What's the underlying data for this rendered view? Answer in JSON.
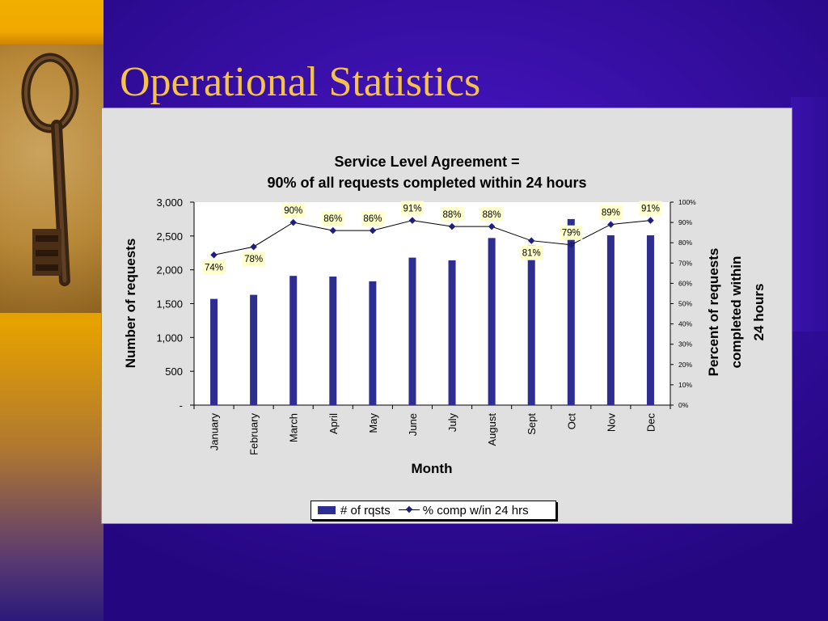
{
  "slide": {
    "title": "Operational Statistics",
    "colors": {
      "title": "#f7c24a",
      "background": "#3a10aa",
      "accent_strip": "#f0a800",
      "bar": "#2e2e92",
      "line": "#000000",
      "marker": "#1f1f7a",
      "label_box": "#ffffcc"
    },
    "image": {
      "icon": "skeleton-key-icon"
    }
  },
  "chart_data": {
    "type": "bar+line",
    "title": [
      "Service Level Agreement =",
      "90% of all requests completed within 24 hours"
    ],
    "xlabel": "Month",
    "ylabel": "Number of requests",
    "y2label": [
      "Percent of requests",
      "completed within",
      "24 hours"
    ],
    "categories": [
      "January",
      "February",
      "March",
      "April",
      "May",
      "June",
      "July",
      "August",
      "Sept",
      "Oct",
      "Nov",
      "Dec"
    ],
    "ylim": [
      0,
      3000
    ],
    "yticks": [
      0,
      500,
      1000,
      1500,
      2000,
      2500,
      3000
    ],
    "ytick_labels": [
      "-",
      "500",
      "1,000",
      "1,500",
      "2,000",
      "2,500",
      "3,000"
    ],
    "y2lim": [
      0,
      100
    ],
    "y2ticks": [
      0,
      10,
      20,
      30,
      40,
      50,
      60,
      70,
      80,
      90,
      100
    ],
    "y2tick_labels": [
      "0%",
      "10%",
      "20%",
      "30%",
      "40%",
      "50%",
      "60%",
      "70%",
      "80%",
      "90%",
      "100%"
    ],
    "grid": false,
    "series": [
      {
        "name": "# of rqsts",
        "type": "bar",
        "axis": "left",
        "values": [
          1570,
          1630,
          1910,
          1900,
          1830,
          2180,
          2140,
          2470,
          2360,
          2750,
          2510,
          2510
        ]
      },
      {
        "name": "% comp w/in 24 hrs",
        "type": "line",
        "axis": "right",
        "values": [
          74,
          78,
          90,
          86,
          86,
          91,
          88,
          88,
          81,
          79,
          89,
          91
        ],
        "labels": [
          "74%",
          "78%",
          "90%",
          "86%",
          "86%",
          "91%",
          "88%",
          "88%",
          "81%",
          "79%",
          "89%",
          "91%"
        ]
      }
    ],
    "legend": {
      "placement": "bottom",
      "items": [
        "# of rqsts",
        "% comp w/in 24 hrs"
      ]
    }
  }
}
